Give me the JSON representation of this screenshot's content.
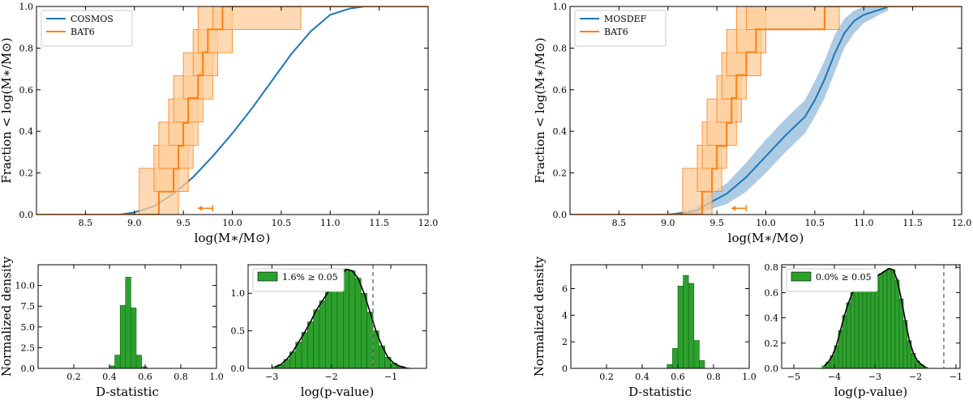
{
  "colors": {
    "blue": "#1f77b4",
    "orange": "#ff7f0e",
    "orange_fill": "#ffcc99",
    "blue_fill": "#aecbe4",
    "green": "#2ca02c",
    "grey_dash": "#808080"
  },
  "chart_data": [
    {
      "id": "cdf_cosmos",
      "type": "line",
      "title": "",
      "xlabel": "log(M∗/M⊙)",
      "ylabel": "Fraction < log(M∗/M⊙)",
      "xlim": [
        8.0,
        12.0
      ],
      "ylim": [
        0.0,
        1.0
      ],
      "xticks": [
        8.5,
        9.0,
        9.5,
        10.0,
        10.5,
        11.0,
        11.5,
        12.0
      ],
      "xtick_labels": [
        "8.5",
        "9.0",
        "9.5",
        "10.0",
        "10.5",
        "11.0",
        "11.5",
        "12.0"
      ],
      "yticks": [
        0.0,
        0.2,
        0.4,
        0.6,
        0.8,
        1.0
      ],
      "ytick_labels": [
        "0.0",
        "0.2",
        "0.4",
        "0.6",
        "0.8",
        "1.0"
      ],
      "legend_position": "top-left",
      "series": [
        {
          "name": "COSMOS",
          "kind": "cdf",
          "color": "blue",
          "x": [
            8.0,
            8.85,
            9.0,
            9.2,
            9.4,
            9.6,
            9.8,
            10.0,
            10.2,
            10.4,
            10.6,
            10.8,
            11.0,
            11.2,
            11.35,
            12.0
          ],
          "y": [
            0.0,
            0.0,
            0.01,
            0.04,
            0.1,
            0.18,
            0.28,
            0.39,
            0.51,
            0.64,
            0.77,
            0.88,
            0.96,
            0.99,
            1.0,
            1.0
          ]
        },
        {
          "name": "BAT6",
          "kind": "step",
          "color": "orange",
          "x": [
            9.25,
            9.4,
            9.45,
            9.5,
            9.55,
            9.65,
            9.7,
            9.75,
            9.9,
            9.95,
            10.5
          ],
          "y": [
            0.11,
            0.22,
            0.33,
            0.44,
            0.56,
            0.67,
            0.78,
            0.89,
            1.0,
            1.0,
            1.0
          ],
          "band_low": [
            0.0,
            0.11,
            0.22,
            0.33,
            0.44,
            0.56,
            0.67,
            0.78,
            0.89,
            1.0,
            1.0
          ],
          "band_high": [
            0.22,
            0.33,
            0.44,
            0.56,
            0.67,
            0.78,
            0.89,
            1.0,
            1.0,
            1.0,
            1.0
          ],
          "band_x": [
            [
              9.05,
              9.45
            ],
            [
              9.2,
              9.55
            ],
            [
              9.25,
              9.6
            ],
            [
              9.35,
              9.65
            ],
            [
              9.4,
              9.7
            ],
            [
              9.5,
              9.8
            ],
            [
              9.6,
              9.85
            ],
            [
              9.65,
              10.0
            ],
            [
              9.8,
              10.7
            ]
          ]
        }
      ],
      "annotations": [
        {
          "type": "upper-limit-arrow",
          "x_start": 9.8,
          "x_end": 9.65,
          "y": 0.03
        }
      ]
    },
    {
      "id": "cdf_mosdef",
      "type": "line",
      "title": "",
      "xlabel": "log(M∗/M⊙)",
      "ylabel": "Fraction < log(M∗/M⊙)",
      "xlim": [
        8.0,
        12.0
      ],
      "ylim": [
        0.0,
        1.0
      ],
      "xticks": [
        8.5,
        9.0,
        9.5,
        10.0,
        10.5,
        11.0,
        11.5,
        12.0
      ],
      "xtick_labels": [
        "8.5",
        "9.0",
        "9.5",
        "10.0",
        "10.5",
        "11.0",
        "11.5",
        "12.0"
      ],
      "yticks": [
        0.0,
        0.2,
        0.4,
        0.6,
        0.8,
        1.0
      ],
      "ytick_labels": [
        "0.0",
        "0.2",
        "0.4",
        "0.6",
        "0.8",
        "1.0"
      ],
      "legend_position": "top-left",
      "series": [
        {
          "name": "MOSDEF",
          "kind": "cdf",
          "color": "blue",
          "x": [
            8.0,
            9.0,
            9.2,
            9.3,
            9.4,
            9.6,
            9.8,
            10.0,
            10.2,
            10.4,
            10.5,
            10.6,
            10.7,
            10.8,
            10.9,
            11.0,
            11.2,
            11.25
          ],
          "y": [
            0.0,
            0.0,
            0.01,
            0.02,
            0.05,
            0.1,
            0.18,
            0.28,
            0.38,
            0.47,
            0.55,
            0.65,
            0.77,
            0.87,
            0.93,
            0.96,
            0.99,
            1.0
          ],
          "band_low": [
            0.0,
            0.0,
            0.0,
            0.0,
            0.02,
            0.05,
            0.11,
            0.2,
            0.3,
            0.39,
            0.47,
            0.56,
            0.68,
            0.8,
            0.87,
            0.92,
            0.97,
            0.98
          ],
          "band_high": [
            0.0,
            0.0,
            0.02,
            0.04,
            0.09,
            0.15,
            0.25,
            0.36,
            0.46,
            0.55,
            0.64,
            0.74,
            0.86,
            0.94,
            0.98,
            1.0,
            1.0,
            1.0
          ]
        },
        {
          "name": "BAT6",
          "kind": "step",
          "color": "orange",
          "x": [
            9.35,
            9.45,
            9.5,
            9.6,
            9.65,
            9.7,
            9.8,
            9.9,
            10.6
          ],
          "y": [
            0.11,
            0.22,
            0.33,
            0.44,
            0.56,
            0.67,
            0.78,
            0.89,
            1.0
          ],
          "band_x": [
            [
              9.15,
              9.45
            ],
            [
              9.3,
              9.55
            ],
            [
              9.35,
              9.6
            ],
            [
              9.4,
              9.7
            ],
            [
              9.5,
              9.75
            ],
            [
              9.55,
              9.8
            ],
            [
              9.6,
              9.95
            ],
            [
              9.7,
              10.0
            ],
            [
              9.8,
              10.75
            ]
          ]
        }
      ],
      "annotations": [
        {
          "type": "upper-limit-arrow",
          "x_start": 9.8,
          "x_end": 9.65,
          "y": 0.03
        }
      ]
    },
    {
      "id": "hist_dstat_cosmos",
      "type": "bar",
      "xlabel": "D-statistic",
      "ylabel": "Normalized density",
      "xlim": [
        0.0,
        1.0
      ],
      "ylim": [
        0.0,
        12.5
      ],
      "xticks": [
        0.2,
        0.4,
        0.6,
        0.8,
        1.0
      ],
      "xtick_labels": [
        "0.2",
        "0.4",
        "0.6",
        "0.8",
        "1.0"
      ],
      "yticks": [
        0.0,
        2.5,
        5.0,
        7.5,
        10.0
      ],
      "ytick_labels": [
        "0.0",
        "2.5",
        "5.0",
        "7.5",
        "10.0"
      ],
      "bin_width": 0.03,
      "bins": [
        0.4,
        0.43,
        0.46,
        0.49,
        0.52,
        0.55,
        0.58
      ],
      "values": [
        0.3,
        1.6,
        7.6,
        11.0,
        7.3,
        1.6,
        0.2
      ]
    },
    {
      "id": "hist_pvalue_cosmos",
      "type": "bar",
      "xlabel": "log(p-value)",
      "ylabel": "",
      "xlim": [
        -3.4,
        -0.4
      ],
      "ylim": [
        0.0,
        1.38
      ],
      "xticks": [
        -3,
        -2,
        -1
      ],
      "xtick_labels": [
        "−3",
        "−2",
        "−1"
      ],
      "yticks": [
        0.0,
        0.5,
        1.0
      ],
      "ytick_labels": [
        "0.0",
        "0.5",
        "1.0"
      ],
      "legend_position": "top-left",
      "legend_label": "1.6% ≥ 0.05",
      "threshold": -1.3,
      "bin_width": 0.1,
      "bins": [
        -3.0,
        -2.9,
        -2.8,
        -2.7,
        -2.6,
        -2.5,
        -2.4,
        -2.3,
        -2.2,
        -2.1,
        -2.0,
        -1.9,
        -1.8,
        -1.7,
        -1.6,
        -1.5,
        -1.4,
        -1.3,
        -1.2,
        -1.1,
        -1.0,
        -0.9,
        -0.8
      ],
      "values": [
        0.02,
        0.05,
        0.12,
        0.22,
        0.35,
        0.48,
        0.62,
        0.78,
        0.9,
        1.02,
        1.12,
        1.22,
        1.32,
        1.3,
        1.2,
        1.0,
        0.75,
        0.5,
        0.3,
        0.15,
        0.07,
        0.03,
        0.01
      ]
    },
    {
      "id": "hist_dstat_mosdef",
      "type": "bar",
      "xlabel": "D-statistic",
      "ylabel": "Normalized density",
      "xlim": [
        0.0,
        1.0
      ],
      "ylim": [
        0.0,
        7.8
      ],
      "xticks": [
        0.2,
        0.4,
        0.6,
        0.8,
        1.0
      ],
      "xtick_labels": [
        "0.2",
        "0.4",
        "0.6",
        "0.8",
        "1.0"
      ],
      "yticks": [
        0.0,
        2.0,
        4.0,
        6.0
      ],
      "ytick_labels": [
        "0",
        "2",
        "4",
        "6"
      ],
      "bin_width": 0.03,
      "bins": [
        0.54,
        0.57,
        0.6,
        0.63,
        0.66,
        0.69,
        0.72
      ],
      "values": [
        0.3,
        1.5,
        6.2,
        7.0,
        6.4,
        2.1,
        0.6
      ]
    },
    {
      "id": "hist_pvalue_mosdef",
      "type": "bar",
      "xlabel": "log(p-value)",
      "ylabel": "",
      "xlim": [
        -5.3,
        -0.9
      ],
      "ylim": [
        0.0,
        0.82
      ],
      "xticks": [
        -5,
        -4,
        -3,
        -2,
        -1
      ],
      "xtick_labels": [
        "−5",
        "−4",
        "−3",
        "−2",
        "−1"
      ],
      "yticks": [
        0.0,
        0.2,
        0.4,
        0.6,
        0.8
      ],
      "ytick_labels": [
        "0.0",
        "0.2",
        "0.4",
        "0.6",
        "0.8"
      ],
      "legend_position": "top-left",
      "legend_label": "0.0% ≥ 0.05",
      "threshold": -1.3,
      "bin_width": 0.1,
      "bins": [
        -4.3,
        -4.2,
        -4.1,
        -4.0,
        -3.9,
        -3.8,
        -3.7,
        -3.6,
        -3.5,
        -3.4,
        -3.3,
        -3.2,
        -3.1,
        -3.0,
        -2.9,
        -2.8,
        -2.7,
        -2.6,
        -2.5,
        -2.4,
        -2.3,
        -2.2,
        -2.1,
        -2.0,
        -1.9,
        -1.8
      ],
      "values": [
        0.02,
        0.05,
        0.1,
        0.18,
        0.3,
        0.42,
        0.52,
        0.6,
        0.65,
        0.68,
        0.7,
        0.71,
        0.72,
        0.73,
        0.75,
        0.77,
        0.79,
        0.78,
        0.7,
        0.55,
        0.38,
        0.22,
        0.12,
        0.06,
        0.03,
        0.01
      ]
    }
  ]
}
